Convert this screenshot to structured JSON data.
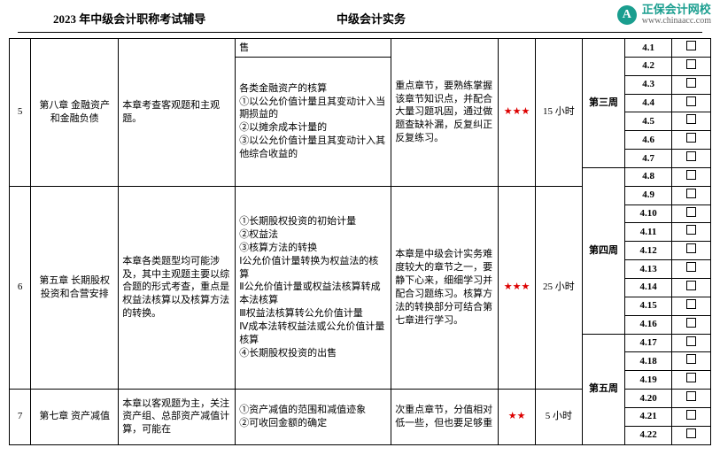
{
  "header": {
    "left": "2023 年中级会计职称考试辅导",
    "center": "中级会计实务",
    "brand": "正保会计网校",
    "url": "www.chinaacc.com",
    "logo_char": "A",
    "logo_bg": "#1a9e8f"
  },
  "clipped_cell": "售",
  "rows": [
    {
      "num": "5",
      "chapter": "第八章 金融资产和金融负债",
      "summary": "本章考查客观题和主观题。",
      "points": "各类金融资产的核算\n①以公允价值计量且其变动计入当期损益的\n②以摊余成本计量的\n③以公允价值计量且其变动计入其他综合收益的",
      "advice": "重点章节，要熟练掌握该章节知识点，并配合大量习题巩固，通过做题查缺补漏，反复纠正反复练习。",
      "stars": "★★★",
      "hours": "15 小时"
    },
    {
      "num": "6",
      "chapter": "第五章 长期股权投资和合营安排",
      "summary": "本章各类题型均可能涉及，其中主观题主要以综合题的形式考查，重点是权益法核算以及核算方法的转换。",
      "points": "①长期股权投资的初始计量\n②权益法\n③核算方法的转换\nⅠ公允价值计量转换为权益法的核算\nⅡ公允价值计量或权益法核算转成本法核算\nⅢ权益法核算转公允价值计量\nⅣ成本法转权益法或公允价值计量核算\n④长期股权投资的出售",
      "advice": "本章是中级会计实务难度较大的章节之一，要静下心来，细细学习并配合习题练习。核算方法的转换部分可结合第七章进行学习。",
      "stars": "★★★",
      "hours": "25 小时"
    },
    {
      "num": "7",
      "chapter": "第七章 资产减值",
      "summary": "本章以客观题为主，关注资产组、总部资产减值计算，可能在",
      "points": "①资产减值的范围和减值迹象\n②可收回金额的确定",
      "advice": "次重点章节，分值相对低一些，但也要足够重",
      "stars": "★★",
      "hours": "5 小时"
    }
  ],
  "weeks": {
    "w3": "第三周",
    "w4": "第四周",
    "w5": "第五周"
  },
  "dates": [
    "4.1",
    "4.2",
    "4.3",
    "4.4",
    "4.5",
    "4.6",
    "4.7",
    "4.8",
    "4.9",
    "4.10",
    "4.11",
    "4.12",
    "4.13",
    "4.14",
    "4.15",
    "4.16",
    "4.17",
    "4.18",
    "4.19",
    "4.20",
    "4.21",
    "4.22"
  ]
}
